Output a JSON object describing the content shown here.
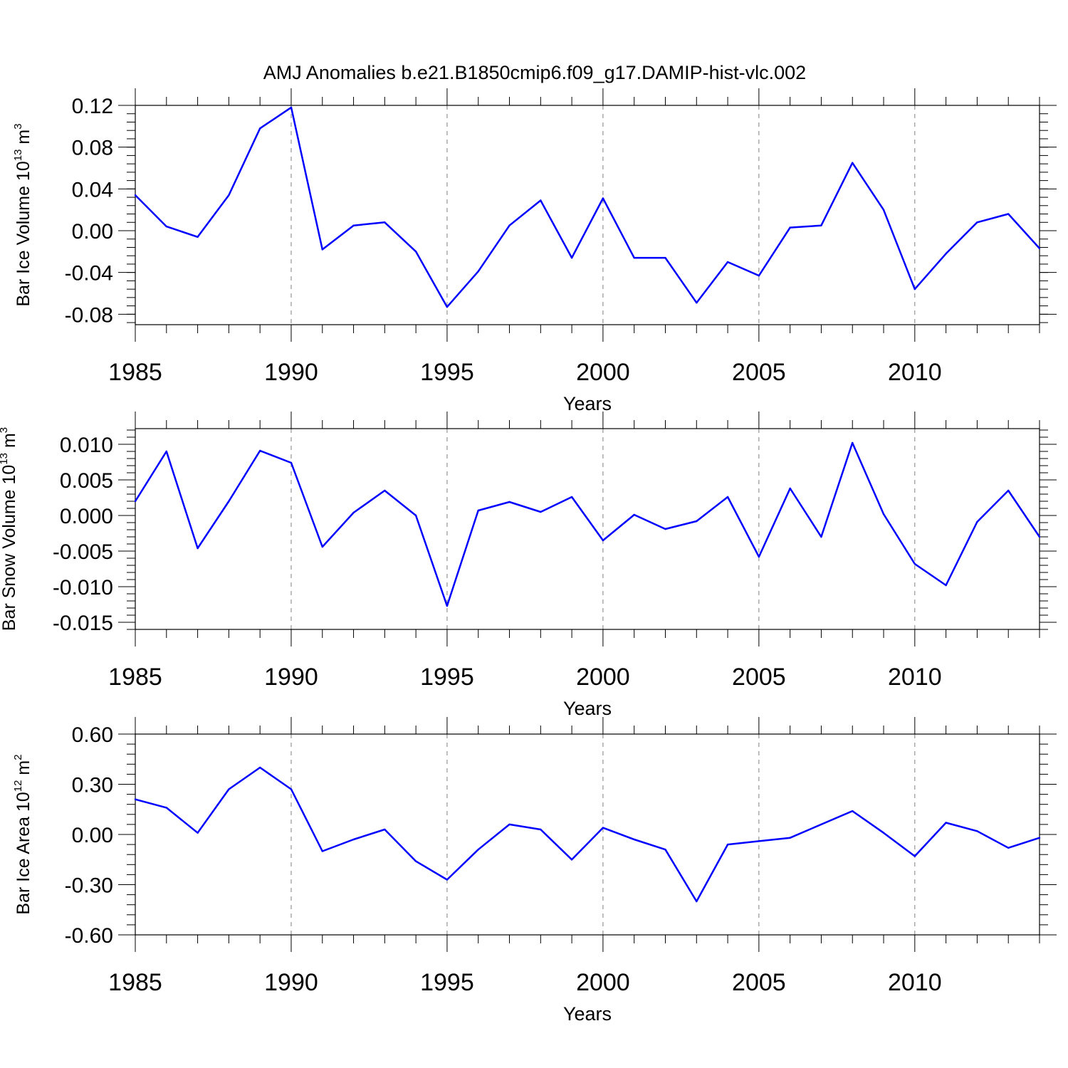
{
  "title": "AMJ Anomalies b.e21.B1850cmip6.f09_g17.DAMIP-hist-vlc.002",
  "line_color": "#0000ff",
  "chart_data": [
    {
      "type": "line",
      "ylabel": {
        "text": "Bar Ice Volume 10",
        "exp": "13",
        "unit": " m",
        "unit_exp": "3"
      },
      "xlabel": "Years",
      "xlim": [
        1985,
        2014
      ],
      "ylim": [
        -0.09,
        0.12
      ],
      "x_ticks": [
        1985,
        1990,
        1995,
        2000,
        2005,
        2010
      ],
      "x_tick_labels": [
        "1985",
        "1990",
        "1995",
        "2000",
        "2005",
        "2010"
      ],
      "y_ticks": [
        -0.08,
        -0.04,
        0.0,
        0.04,
        0.08,
        0.12
      ],
      "y_tick_labels": [
        "-0.08",
        "-0.04",
        "0.00",
        "0.04",
        "0.08",
        "0.12"
      ],
      "y_minor_step": 0.008,
      "grid_x_dashed": true,
      "x": [
        1985,
        1986,
        1987,
        1988,
        1989,
        1990,
        1991,
        1992,
        1993,
        1994,
        1995,
        1996,
        1997,
        1998,
        1999,
        2000,
        2001,
        2002,
        2003,
        2004,
        2005,
        2006,
        2007,
        2008,
        2009,
        2010,
        2011,
        2012,
        2013,
        2014
      ],
      "values": [
        0.034,
        0.004,
        -0.006,
        0.034,
        0.098,
        0.118,
        -0.018,
        0.005,
        0.008,
        -0.02,
        -0.073,
        -0.039,
        0.005,
        0.029,
        -0.026,
        0.031,
        -0.026,
        -0.026,
        -0.069,
        -0.03,
        -0.043,
        0.003,
        0.005,
        0.065,
        0.02,
        -0.056,
        -0.022,
        0.008,
        0.016,
        -0.017
      ]
    },
    {
      "type": "line",
      "ylabel": {
        "text": "Bar Snow Volume 10",
        "exp": "13",
        "unit": " m",
        "unit_exp": "3"
      },
      "xlabel": "Years",
      "xlim": [
        1985,
        2014
      ],
      "ylim": [
        -0.016,
        0.0122
      ],
      "x_ticks": [
        1985,
        1990,
        1995,
        2000,
        2005,
        2010
      ],
      "x_tick_labels": [
        "1985",
        "1990",
        "1995",
        "2000",
        "2005",
        "2010"
      ],
      "y_ticks": [
        -0.015,
        -0.01,
        -0.005,
        0.0,
        0.005,
        0.01
      ],
      "y_tick_labels": [
        "-0.015",
        "-0.010",
        "-0.005",
        "0.000",
        "0.005",
        "0.010"
      ],
      "y_minor_step": 0.001,
      "grid_x_dashed": true,
      "x": [
        1985,
        1986,
        1987,
        1988,
        1989,
        1990,
        1991,
        1992,
        1993,
        1994,
        1995,
        1996,
        1997,
        1998,
        1999,
        2000,
        2001,
        2002,
        2003,
        2004,
        2005,
        2006,
        2007,
        2008,
        2009,
        2010,
        2011,
        2012,
        2013,
        2014
      ],
      "values": [
        0.002,
        0.009,
        -0.0046,
        0.002,
        0.0091,
        0.0074,
        -0.0044,
        0.0004,
        0.0035,
        0.0,
        -0.0127,
        0.0007,
        0.0019,
        0.0005,
        0.0026,
        -0.0035,
        0.0001,
        -0.0019,
        -0.0008,
        0.0026,
        -0.0058,
        0.0038,
        -0.003,
        0.0102,
        0.0002,
        -0.0068,
        -0.0098,
        -0.0009,
        0.0035,
        -0.003
      ]
    },
    {
      "type": "line",
      "ylabel": {
        "text": "Bar Ice Area 10",
        "exp": "12",
        "unit": " m",
        "unit_exp": "2"
      },
      "xlabel": "Years",
      "xlim": [
        1985,
        2014
      ],
      "ylim": [
        -0.6,
        0.6
      ],
      "x_ticks": [
        1985,
        1990,
        1995,
        2000,
        2005,
        2010
      ],
      "x_tick_labels": [
        "1985",
        "1990",
        "1995",
        "2000",
        "2005",
        "2010"
      ],
      "y_ticks": [
        -0.6,
        -0.3,
        0.0,
        0.3,
        0.6
      ],
      "y_tick_labels": [
        "-0.60",
        "-0.30",
        "0.00",
        "0.30",
        "0.60"
      ],
      "y_minor_step": 0.06,
      "grid_x_dashed": true,
      "x": [
        1985,
        1986,
        1987,
        1988,
        1989,
        1990,
        1991,
        1992,
        1993,
        1994,
        1995,
        1996,
        1997,
        1998,
        1999,
        2000,
        2001,
        2002,
        2003,
        2004,
        2005,
        2006,
        2007,
        2008,
        2009,
        2010,
        2011,
        2012,
        2013,
        2014
      ],
      "values": [
        0.21,
        0.16,
        0.01,
        0.27,
        0.4,
        0.27,
        -0.1,
        -0.03,
        0.03,
        -0.16,
        -0.27,
        -0.09,
        0.06,
        0.03,
        -0.15,
        0.04,
        -0.03,
        -0.09,
        -0.4,
        -0.06,
        -0.04,
        -0.02,
        0.06,
        0.14,
        0.01,
        -0.13,
        0.07,
        0.02,
        -0.08,
        -0.02
      ]
    }
  ]
}
